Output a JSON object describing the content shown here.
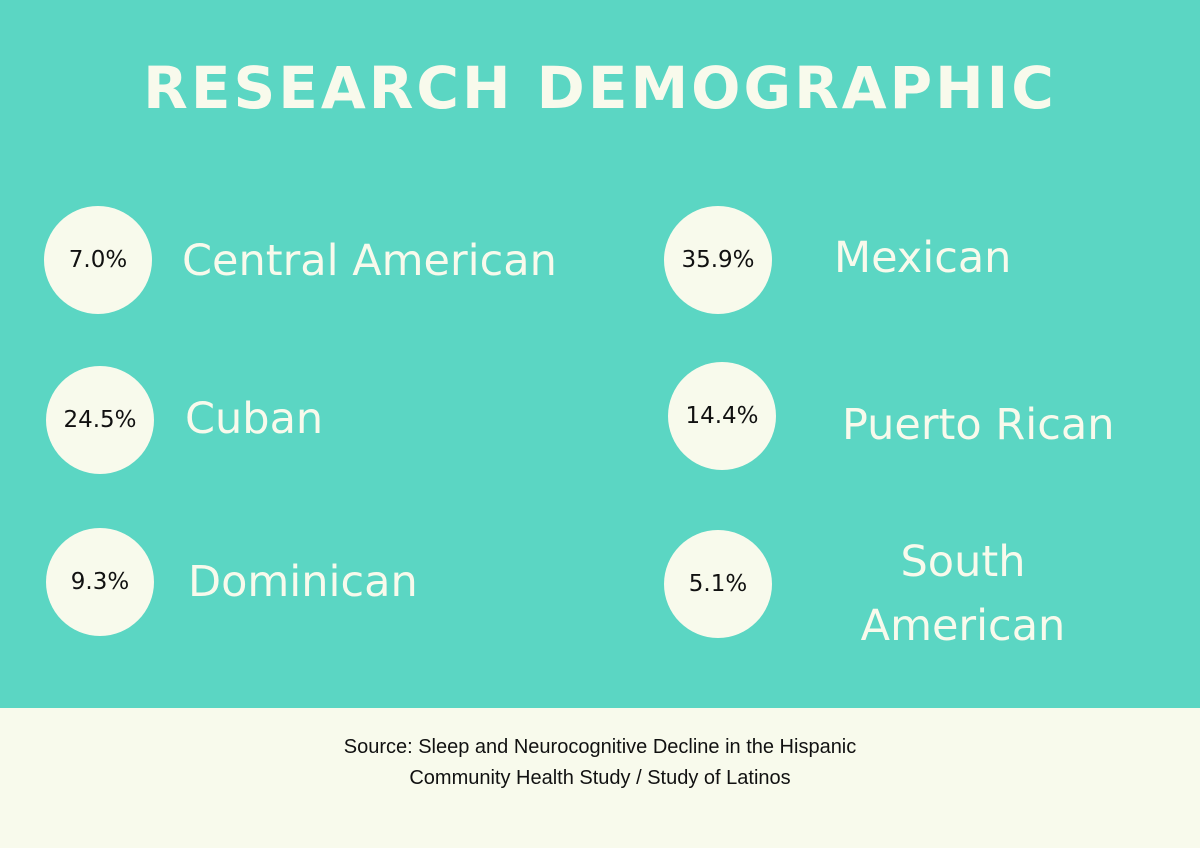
{
  "title": "RESEARCH DEMOGRAPHIC",
  "colors": {
    "panel": "#5bd6c3",
    "footer": "#f8faec",
    "circle": "#f8faec",
    "label_text": "#f8faec",
    "value_text": "#111111"
  },
  "groups": [
    {
      "label": "Central American",
      "value": "7.0%"
    },
    {
      "label": "Cuban",
      "value": "24.5%"
    },
    {
      "label": "Dominican",
      "value": "9.3%"
    },
    {
      "label": "Mexican",
      "value": "35.9%"
    },
    {
      "label": "Puerto Rican",
      "value": "14.4%"
    },
    {
      "label_line1": "South",
      "label_line2": "American",
      "value": "5.1%"
    }
  ],
  "source": {
    "line1": "Source: Sleep and Neurocognitive Decline in the Hispanic",
    "line2": "Community Health Study / Study of Latinos"
  }
}
